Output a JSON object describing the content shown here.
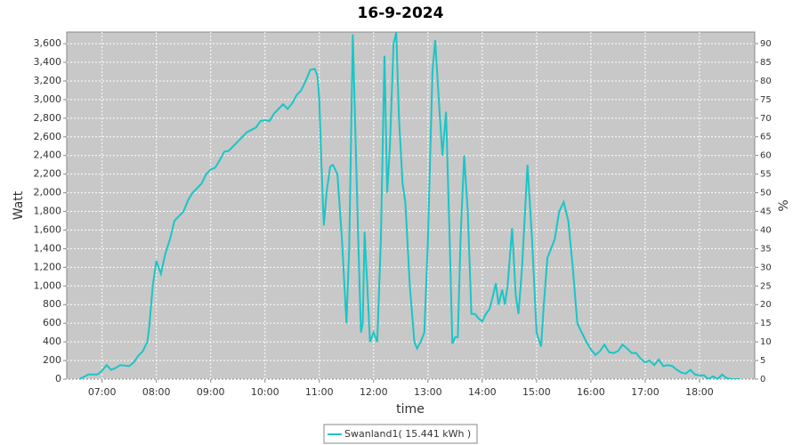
{
  "chart_data": {
    "type": "line",
    "title": "16-9-2024",
    "xlabel": "time",
    "ylabel": "Watt",
    "y2label": "%",
    "x": [
      "06:35",
      "06:45",
      "06:55",
      "07:00",
      "07:05",
      "07:10",
      "07:15",
      "07:20",
      "07:30",
      "07:35",
      "07:40",
      "07:45",
      "07:50",
      "07:52",
      "07:56",
      "08:00",
      "08:05",
      "08:10",
      "08:15",
      "08:20",
      "08:25",
      "08:30",
      "08:35",
      "08:40",
      "08:45",
      "08:50",
      "08:55",
      "09:00",
      "09:05",
      "09:10",
      "09:15",
      "09:20",
      "09:30",
      "09:40",
      "09:50",
      "09:55",
      "10:00",
      "10:05",
      "10:10",
      "10:15",
      "10:20",
      "10:25",
      "10:30",
      "10:35",
      "10:40",
      "10:45",
      "10:50",
      "10:55",
      "10:58",
      "11:00",
      "11:02",
      "11:05",
      "11:08",
      "11:12",
      "11:15",
      "11:20",
      "11:25",
      "11:30",
      "11:33",
      "11:37",
      "11:40",
      "11:43",
      "11:46",
      "11:48",
      "11:50",
      "11:53",
      "11:56",
      "12:00",
      "12:04",
      "12:08",
      "12:12",
      "12:15",
      "12:18",
      "12:22",
      "12:25",
      "12:28",
      "12:32",
      "12:35",
      "12:40",
      "12:45",
      "12:48",
      "12:52",
      "12:56",
      "13:00",
      "13:05",
      "13:08",
      "13:12",
      "13:16",
      "13:20",
      "13:24",
      "13:27",
      "13:30",
      "13:33",
      "13:36",
      "13:40",
      "13:44",
      "13:48",
      "13:52",
      "13:56",
      "14:00",
      "14:04",
      "14:08",
      "14:12",
      "14:15",
      "14:18",
      "14:22",
      "14:25",
      "14:28",
      "14:33",
      "14:37",
      "14:40",
      "14:44",
      "14:50",
      "14:55",
      "15:00",
      "15:05",
      "15:08",
      "15:12",
      "15:16",
      "15:20",
      "15:25",
      "15:30",
      "15:35",
      "15:40",
      "15:45",
      "15:50",
      "15:55",
      "16:00",
      "16:05",
      "16:10",
      "16:15",
      "16:20",
      "16:25",
      "16:30",
      "16:35",
      "16:40",
      "16:45",
      "16:50",
      "16:55",
      "17:00",
      "17:05",
      "17:10",
      "17:15",
      "17:20",
      "17:25",
      "17:30",
      "17:35",
      "17:40",
      "17:45",
      "17:50",
      "17:55",
      "18:00",
      "18:05",
      "18:10",
      "18:15",
      "18:20",
      "18:25",
      "18:30",
      "18:35",
      "18:45"
    ],
    "series": [
      {
        "name": "Swanland1( 15.441 kWh )",
        "color": "#19c6c6",
        "values": [
          0,
          50,
          50,
          90,
          150,
          100,
          120,
          150,
          140,
          180,
          250,
          300,
          400,
          550,
          1000,
          1270,
          1130,
          1350,
          1500,
          1700,
          1750,
          1800,
          1920,
          2000,
          2050,
          2100,
          2200,
          2250,
          2270,
          2350,
          2440,
          2450,
          2550,
          2650,
          2700,
          2770,
          2780,
          2770,
          2850,
          2900,
          2950,
          2900,
          2960,
          3050,
          3100,
          3200,
          3320,
          3330,
          3250,
          3000,
          2400,
          1650,
          2000,
          2280,
          2300,
          2200,
          1500,
          600,
          1400,
          3700,
          2600,
          1500,
          500,
          600,
          1580,
          1000,
          400,
          500,
          400,
          1500,
          3470,
          2000,
          2500,
          3600,
          3720,
          2800,
          2100,
          1900,
          1000,
          400,
          330,
          400,
          500,
          1500,
          3300,
          3640,
          3000,
          2400,
          2870,
          1500,
          380,
          450,
          450,
          1500,
          2400,
          1800,
          700,
          700,
          650,
          620,
          700,
          750,
          900,
          1030,
          800,
          960,
          800,
          1000,
          1620,
          900,
          700,
          1200,
          2300,
          1500,
          500,
          350,
          800,
          1300,
          1400,
          1500,
          1800,
          1900,
          1700,
          1200,
          600,
          500,
          400,
          320,
          260,
          300,
          370,
          290,
          280,
          300,
          370,
          330,
          280,
          280,
          220,
          180,
          200,
          150,
          210,
          140,
          150,
          140,
          100,
          70,
          60,
          100,
          50,
          40,
          40,
          0,
          30,
          0,
          50,
          10,
          0,
          0
        ]
      }
    ],
    "xlim": [
      "06:21",
      "19:01"
    ],
    "xticks": [
      "07:00",
      "08:00",
      "09:00",
      "10:00",
      "11:00",
      "12:00",
      "13:00",
      "14:00",
      "15:00",
      "16:00",
      "17:00",
      "18:00"
    ],
    "ylim": [
      0,
      3725
    ],
    "yticks": [
      0,
      200,
      400,
      600,
      800,
      {
        "value": 1000,
        "label": "1,000"
      },
      {
        "value": 1200,
        "label": "1,200"
      },
      {
        "value": 1400,
        "label": "1,400"
      },
      {
        "value": 1600,
        "label": "1,600"
      },
      {
        "value": 1800,
        "label": "1,800"
      },
      {
        "value": 2000,
        "label": "2,000"
      },
      {
        "value": 2200,
        "label": "2,200"
      },
      {
        "value": 2400,
        "label": "2,400"
      },
      {
        "value": 2600,
        "label": "2,600"
      },
      {
        "value": 2800,
        "label": "2,800"
      },
      {
        "value": 3000,
        "label": "3,000"
      },
      {
        "value": 3200,
        "label": "3,200"
      },
      {
        "value": 3400,
        "label": "3,400"
      },
      {
        "value": 3600,
        "label": "3,600"
      }
    ],
    "y2lim": [
      0,
      93.1
    ],
    "y2ticks": [
      0,
      5,
      10,
      15,
      20,
      25,
      30,
      35,
      40,
      45,
      50,
      55,
      60,
      65,
      70,
      75,
      80,
      85,
      90
    ],
    "grid": true
  }
}
